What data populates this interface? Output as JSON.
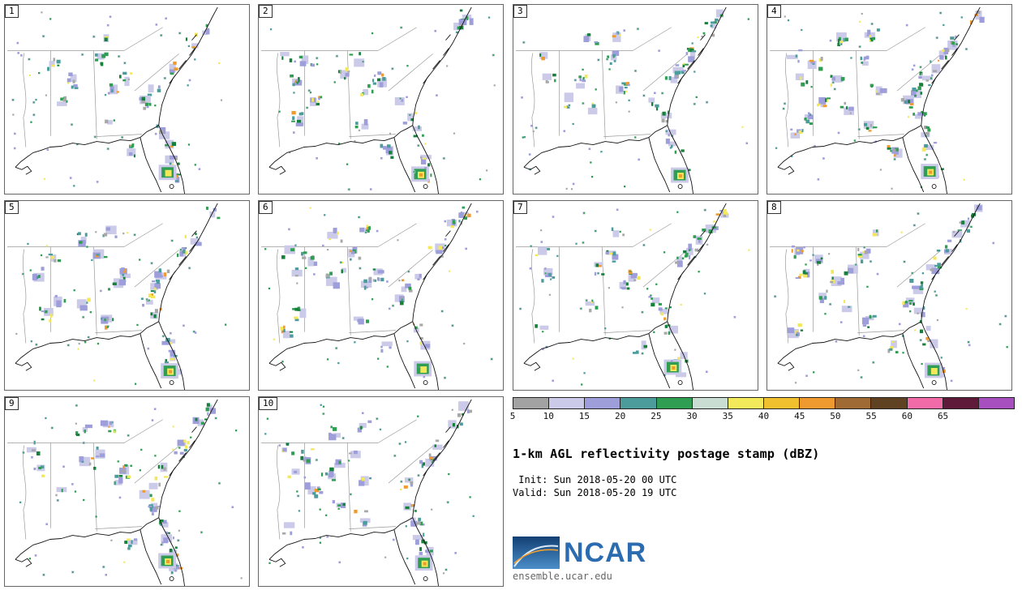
{
  "figure": {
    "title": "1-km AGL reflectivity postage stamp (dBZ)",
    "init_line": " Init: Sun 2018-05-20 00 UTC",
    "valid_line": "Valid: Sun 2018-05-20 19 UTC"
  },
  "panels": [
    {
      "label": "1"
    },
    {
      "label": "2"
    },
    {
      "label": "3"
    },
    {
      "label": "4"
    },
    {
      "label": "5"
    },
    {
      "label": "6"
    },
    {
      "label": "7"
    },
    {
      "label": "8"
    },
    {
      "label": "9"
    },
    {
      "label": "10"
    }
  ],
  "colorbar": {
    "units": "dBZ",
    "tick_labels": [
      "5",
      "10",
      "15",
      "20",
      "25",
      "30",
      "35",
      "40",
      "45",
      "50",
      "55",
      "60",
      "65"
    ],
    "colors": [
      "#a2a2a2",
      "#cbcbe9",
      "#9e9eda",
      "#4c9c9c",
      "#2f9e52",
      "#c9ddd2",
      "#f2ea5a",
      "#f0c02f",
      "#ef9a2f",
      "#a06a35",
      "#5f4222",
      "#f06ba8",
      "#5e1a38",
      "#a84fc0"
    ]
  },
  "branding": {
    "logo_text": "NCAR",
    "site_text": "ensemble.ucar.edu",
    "logo_blue_dark": "#123f73",
    "logo_blue_light": "#4b8ec9",
    "logo_text_color": "#2b6cb0"
  },
  "map_palette": {
    "fringe": "#cbcbe9",
    "light": "#9e9eda",
    "gray": "#a8a8a8",
    "teal": "#4c9c9c",
    "green": "#2f9e52",
    "dark_green": "#17813c",
    "yellow": "#f2e85a",
    "gold": "#f0c02f",
    "orange": "#ef9a2f"
  }
}
